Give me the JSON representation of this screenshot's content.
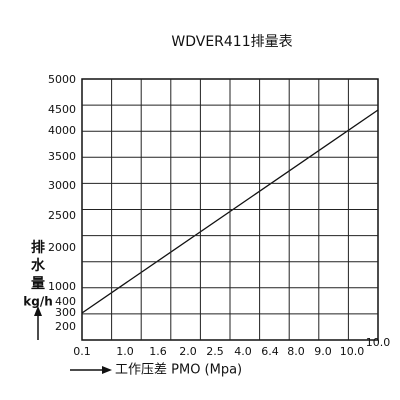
{
  "title": "WDVER411排量表",
  "x_tick_labels": [
    "0.1",
    "1.0",
    "1.6",
    "2.0",
    "2.5",
    "4.0",
    "6.4",
    "8.0",
    "9.0",
    "10.0"
  ],
  "x_last_label": "10.0",
  "y_tick_labels": [
    "5000",
    "4500",
    "4000",
    "3500",
    "3000",
    "2500",
    "2000",
    "1000",
    "400",
    "300",
    "200"
  ],
  "y_label_chars": [
    "排",
    "水",
    "量"
  ],
  "y_unit": "kg/h",
  "x_label": "工作压差 PMO (Mpa)"
}
